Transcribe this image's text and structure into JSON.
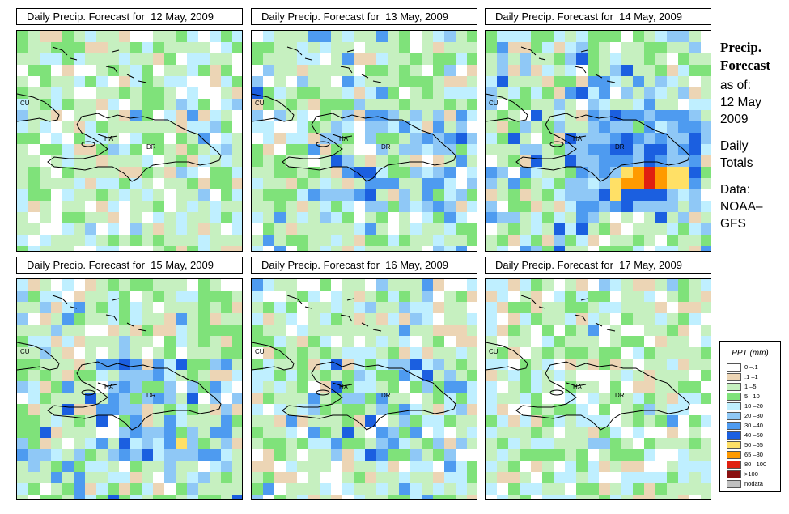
{
  "panels": [
    {
      "title": "Daily Precip. Forecast for  12 May, 2009",
      "wet": 0.25,
      "blueP": 0.03,
      "seed": 11
    },
    {
      "title": "Daily Precip. Forecast for  13 May, 2009",
      "wet": 0.55,
      "blueP": 0.18,
      "seed": 23
    },
    {
      "title": "Daily Precip. Forecast for  14 May, 2009",
      "wet": 0.6,
      "blueP": 0.35,
      "seed": 37
    },
    {
      "title": "Daily Precip. Forecast for  15 May, 2009",
      "wet": 0.6,
      "blueP": 0.22,
      "seed": 41
    },
    {
      "title": "Daily Precip. Forecast for  16 May, 2009",
      "wet": 0.55,
      "blueP": 0.12,
      "seed": 53
    },
    {
      "title": "Daily Precip. Forecast for  17 May, 2009",
      "wet": 0.45,
      "blueP": 0.02,
      "seed": 67
    }
  ],
  "map_labels": {
    "cuba": "CU",
    "haiti": "HA",
    "dominican_republic": "DR"
  },
  "side": {
    "title_line1": "Precip.",
    "title_line2": "Forecast",
    "asof": "as of:",
    "date_line1": "12 May",
    "date_line2": "2009",
    "daily_line1": "Daily",
    "daily_line2": "Totals",
    "data_line1": "Data:",
    "data_line2": "NOAA–",
    "data_line3": "GFS"
  },
  "legend": {
    "title": "PPT (mm)",
    "items": [
      {
        "label": "0 –.1",
        "color": "#ffffff"
      },
      {
        "label": ".1 –1",
        "color": "#ecd5b5"
      },
      {
        "label": "1 –5",
        "color": "#c6f0c0"
      },
      {
        "label": "5 –10",
        "color": "#7fe27a"
      },
      {
        "label": "10 –20",
        "color": "#bfefff"
      },
      {
        "label": "20 –30",
        "color": "#8fc8f6"
      },
      {
        "label": "30 –40",
        "color": "#4e9bf0"
      },
      {
        "label": "40 –50",
        "color": "#1b5fe0"
      },
      {
        "label": "50 –65",
        "color": "#ffe066"
      },
      {
        "label": "65 –80",
        "color": "#ff9a00"
      },
      {
        "label": "80 –100",
        "color": "#e02010"
      },
      {
        "label": ">100",
        "color": "#8a1010"
      },
      {
        "label": "nodata",
        "color": "#c0c0c0"
      }
    ]
  },
  "hotspots": {
    "panel3_heavy": "orange-yellow cluster south of Dominican Republic",
    "panel4_point": "yellow cell south of Dominican Republic"
  }
}
